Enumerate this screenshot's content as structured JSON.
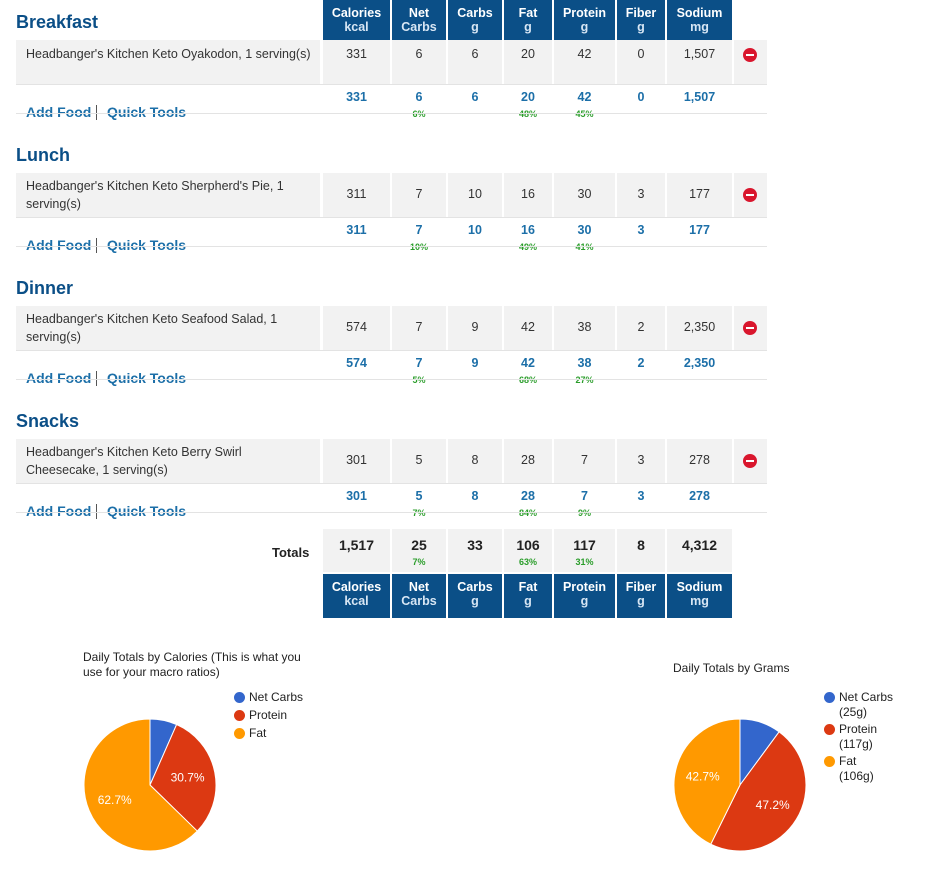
{
  "columns": [
    {
      "key": "calories",
      "l1": "Calories",
      "l2": "kcal"
    },
    {
      "key": "net_carbs",
      "l1": "Net",
      "l2": "Carbs"
    },
    {
      "key": "carbs",
      "l1": "Carbs",
      "l2": "g"
    },
    {
      "key": "fat",
      "l1": "Fat",
      "l2": "g"
    },
    {
      "key": "protein",
      "l1": "Protein",
      "l2": "g"
    },
    {
      "key": "fiber",
      "l1": "Fiber",
      "l2": "g"
    },
    {
      "key": "sodium",
      "l1": "Sodium",
      "l2": "mg"
    }
  ],
  "actions": {
    "add_food": "Add Food",
    "quick_tools": "Quick Tools"
  },
  "meals": [
    {
      "title": "Breakfast",
      "food": {
        "name": "Headbanger's Kitchen Keto Oyakodon, 1 serving(s)",
        "values": [
          "331",
          "6",
          "6",
          "20",
          "42",
          "0",
          "1,507"
        ]
      },
      "totals": [
        "331",
        "6",
        "6",
        "20",
        "42",
        "0",
        "1,507"
      ],
      "pcts": [
        "",
        "6%",
        "",
        "48%",
        "45%",
        "",
        ""
      ]
    },
    {
      "title": "Lunch",
      "food": {
        "name": "Headbanger's Kitchen Keto Sherpherd's Pie, 1 serving(s)",
        "values": [
          "311",
          "7",
          "10",
          "16",
          "30",
          "3",
          "177"
        ]
      },
      "totals": [
        "311",
        "7",
        "10",
        "16",
        "30",
        "3",
        "177"
      ],
      "pcts": [
        "",
        "10%",
        "",
        "49%",
        "41%",
        "",
        ""
      ]
    },
    {
      "title": "Dinner",
      "food": {
        "name": "Headbanger's Kitchen Keto Seafood Salad, 1 serving(s)",
        "values": [
          "574",
          "7",
          "9",
          "42",
          "38",
          "2",
          "2,350"
        ]
      },
      "totals": [
        "574",
        "7",
        "9",
        "42",
        "38",
        "2",
        "2,350"
      ],
      "pcts": [
        "",
        "5%",
        "",
        "68%",
        "27%",
        "",
        ""
      ]
    },
    {
      "title": "Snacks",
      "food": {
        "name": "Headbanger's Kitchen Keto Berry Swirl Cheesecake, 1 serving(s)",
        "values": [
          "301",
          "5",
          "8",
          "28",
          "7",
          "3",
          "278"
        ]
      },
      "totals": [
        "301",
        "5",
        "8",
        "28",
        "7",
        "3",
        "278"
      ],
      "pcts": [
        "",
        "7%",
        "",
        "84%",
        "9%",
        "",
        ""
      ]
    }
  ],
  "grand_totals": {
    "label": "Totals",
    "values": [
      "1,517",
      "25",
      "33",
      "106",
      "117",
      "8",
      "4,312"
    ],
    "pcts": [
      "",
      "7%",
      "",
      "63%",
      "31%",
      "",
      ""
    ]
  },
  "colors": {
    "net_carbs": "#3366cc",
    "protein": "#dc3912",
    "fat": "#ff9900",
    "header": "#0b4f87"
  },
  "chart_data": [
    {
      "type": "pie",
      "title": "Daily Totals by Calories (This is what you use for your macro ratios)",
      "legend_position": "right",
      "slices": [
        {
          "label": "Net Carbs",
          "value": 6.6,
          "display": ""
        },
        {
          "label": "Protein",
          "value": 30.7,
          "display": "30.7%"
        },
        {
          "label": "Fat",
          "value": 62.7,
          "display": "62.7%"
        }
      ]
    },
    {
      "type": "pie",
      "title": "Daily Totals by Grams",
      "legend_position": "right",
      "slices": [
        {
          "label": "Net Carbs",
          "sub": "(25g)",
          "value": 10.1,
          "display": ""
        },
        {
          "label": "Protein",
          "sub": "(117g)",
          "value": 47.2,
          "display": "47.2%"
        },
        {
          "label": "Fat",
          "sub": "(106g)",
          "value": 42.7,
          "display": "42.7%"
        }
      ]
    }
  ]
}
